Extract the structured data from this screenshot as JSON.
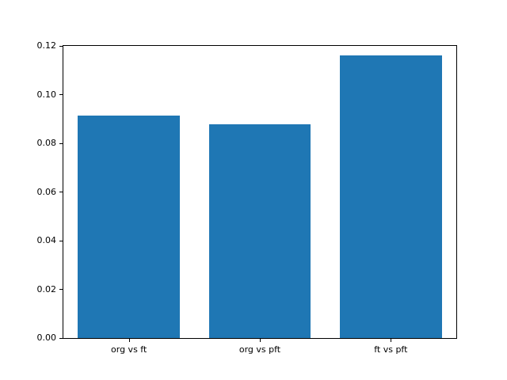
{
  "chart_data": {
    "type": "bar",
    "categories": [
      "org vs ft",
      "org vs pft",
      "ft vs pft"
    ],
    "values": [
      0.0915,
      0.0878,
      0.116
    ],
    "title": "",
    "xlabel": "",
    "ylabel": "",
    "ylim": [
      0,
      0.12
    ],
    "ytick_values": [
      0.0,
      0.02,
      0.04,
      0.06,
      0.08,
      0.1,
      0.12
    ],
    "ytick_labels": [
      "0.00",
      "0.02",
      "0.04",
      "0.06",
      "0.08",
      "0.10",
      "0.12"
    ],
    "bar_color": "#1f77b4",
    "grid": false,
    "legend_position": "none",
    "background_color": "#ffffff",
    "spine_color": "#000000"
  }
}
